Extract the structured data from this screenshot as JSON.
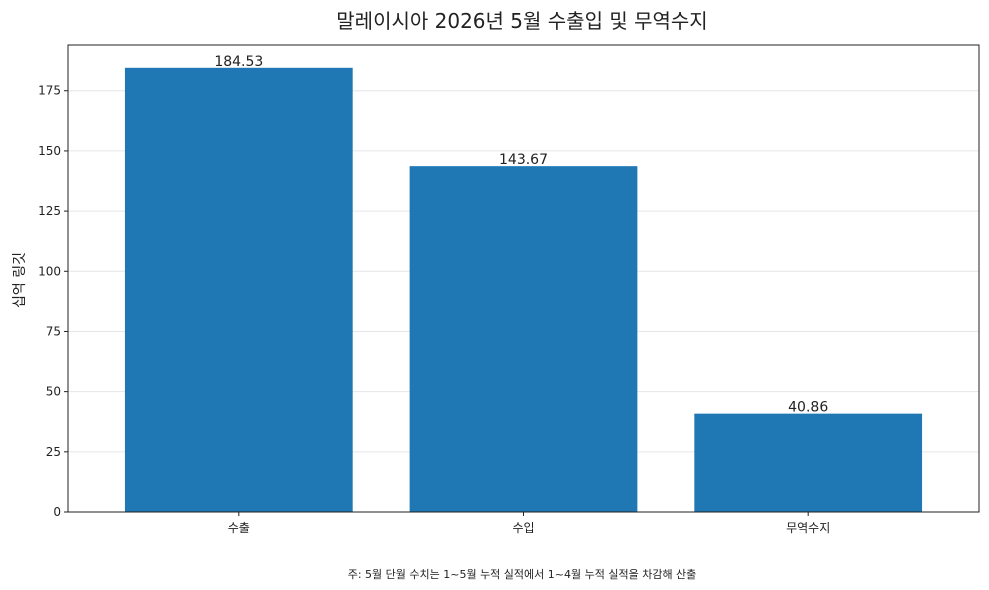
{
  "chart_data": {
    "type": "bar",
    "title": "말레이시아 2026년 5월 수출입 및 무역수지",
    "categories": [
      "수출",
      "수입",
      "무역수지"
    ],
    "values": [
      184.53,
      143.67,
      40.86
    ],
    "value_labels": [
      "184.53",
      "143.67",
      "40.86"
    ],
    "xlabel": "",
    "ylabel": "십억 링깃",
    "ylim": [
      0,
      194
    ],
    "yticks": [
      0,
      25,
      50,
      75,
      100,
      125,
      150,
      175
    ],
    "grid": "horizontal",
    "bar_color": "#1f77b4",
    "footnote": "주: 5월 단월 수치는 1~5월 누적 실적에서 1~4월 누적 실적을 차감해 산출"
  }
}
